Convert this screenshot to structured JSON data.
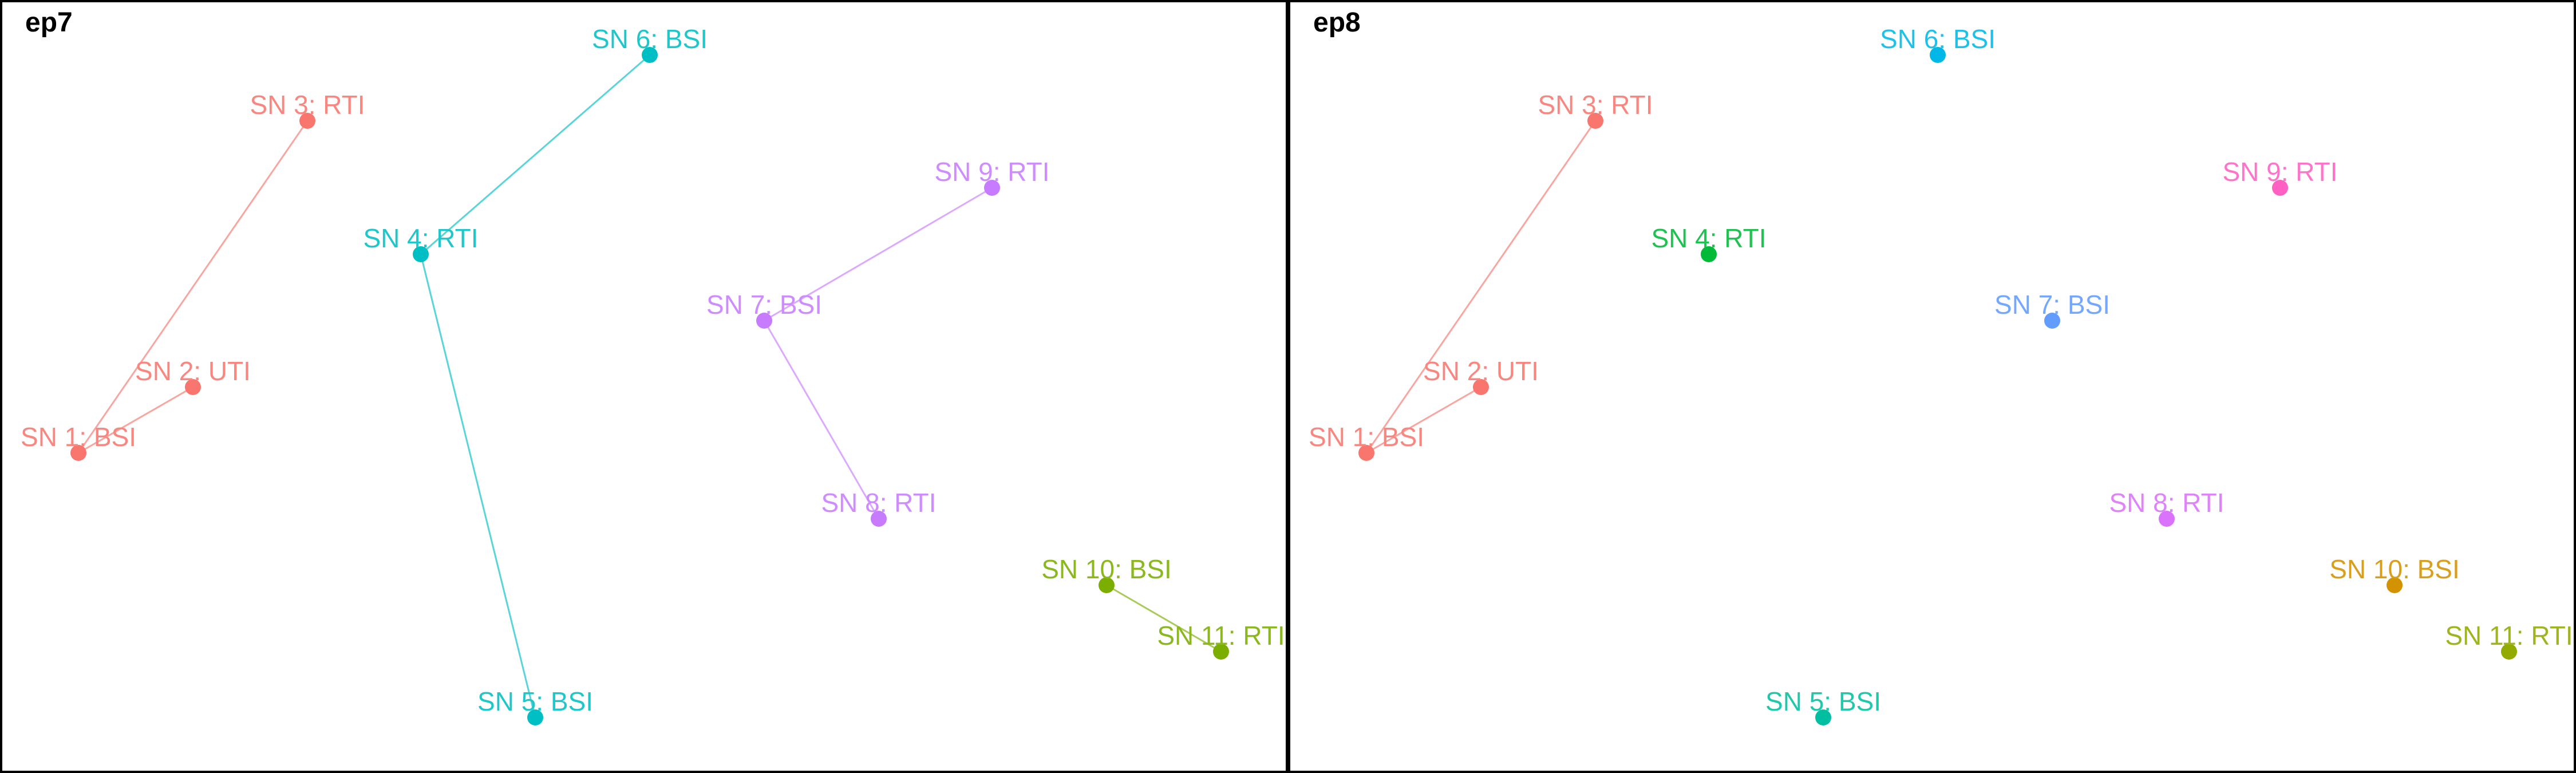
{
  "panels": [
    {
      "title": "ep7",
      "nodes": [
        {
          "id": 1,
          "label": "SN 1: BSI",
          "color": "#F8766D"
        },
        {
          "id": 2,
          "label": "SN 2: UTI",
          "color": "#F8766D"
        },
        {
          "id": 3,
          "label": "SN 3: RTI",
          "color": "#F8766D"
        },
        {
          "id": 4,
          "label": "SN 4: RTI",
          "color": "#00BFC4"
        },
        {
          "id": 5,
          "label": "SN 5: BSI",
          "color": "#00BFC4"
        },
        {
          "id": 6,
          "label": "SN 6: BSI",
          "color": "#00BFC4"
        },
        {
          "id": 7,
          "label": "SN 7: BSI",
          "color": "#C77CFF"
        },
        {
          "id": 8,
          "label": "SN 8: RTI",
          "color": "#C77CFF"
        },
        {
          "id": 9,
          "label": "SN 9: RTI",
          "color": "#C77CFF"
        },
        {
          "id": 10,
          "label": "SN 10: BSI",
          "color": "#7CAE00"
        },
        {
          "id": 11,
          "label": "SN 11: RTI",
          "color": "#7CAE00"
        }
      ],
      "edges": [
        [
          1,
          2
        ],
        [
          1,
          3
        ],
        [
          4,
          5
        ],
        [
          4,
          6
        ],
        [
          7,
          8
        ],
        [
          7,
          9
        ],
        [
          10,
          11
        ]
      ]
    },
    {
      "title": "ep8",
      "nodes": [
        {
          "id": 1,
          "label": "SN 1: BSI",
          "color": "#F8766D"
        },
        {
          "id": 2,
          "label": "SN 2: UTI",
          "color": "#F8766D"
        },
        {
          "id": 3,
          "label": "SN 3: RTI",
          "color": "#F8766D"
        },
        {
          "id": 4,
          "label": "SN 4: RTI",
          "color": "#00BA38"
        },
        {
          "id": 5,
          "label": "SN 5: BSI",
          "color": "#00BFA0"
        },
        {
          "id": 6,
          "label": "SN 6: BSI",
          "color": "#00B8E7"
        },
        {
          "id": 7,
          "label": "SN 7: BSI",
          "color": "#619CFF"
        },
        {
          "id": 8,
          "label": "SN 8: RTI",
          "color": "#DB72FB"
        },
        {
          "id": 9,
          "label": "SN 9: RTI",
          "color": "#FF61C3"
        },
        {
          "id": 10,
          "label": "SN 10: BSI",
          "color": "#D39200"
        },
        {
          "id": 11,
          "label": "SN 11: RTI",
          "color": "#93AA00"
        }
      ],
      "edges": [
        [
          1,
          2
        ],
        [
          1,
          3
        ]
      ]
    }
  ]
}
